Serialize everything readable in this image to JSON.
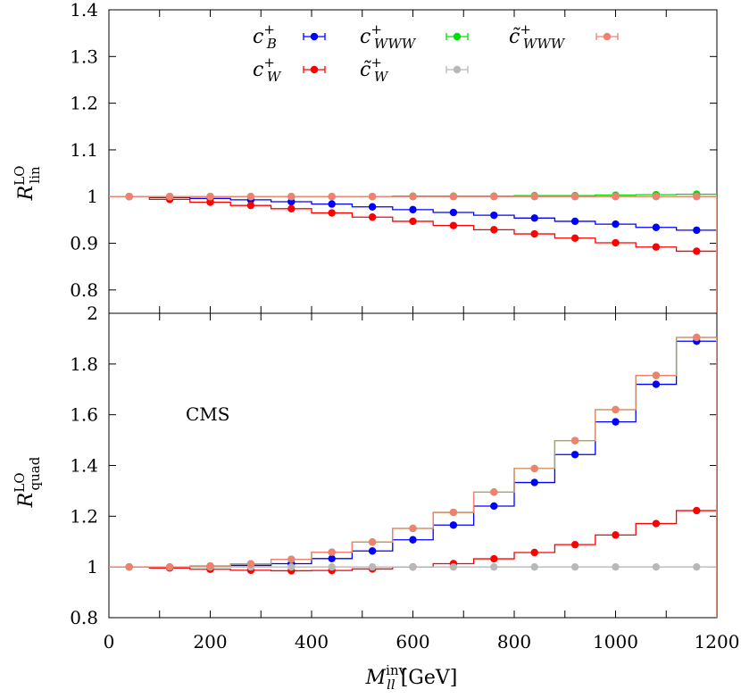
{
  "chart_data": [
    {
      "type": "line",
      "panel": "top",
      "ylabel": {
        "main": "R",
        "sup": "LO",
        "sub": "lin"
      },
      "ylim": [
        0.75,
        1.4
      ],
      "yticks": [
        "0.8",
        "0.9",
        "1",
        "1.1",
        "1.2",
        "1.3",
        "1.4"
      ],
      "ytick_values": [
        0.8,
        0.9,
        1.0,
        1.1,
        1.2,
        1.3,
        1.4
      ],
      "x_edges": [
        0,
        80,
        160,
        240,
        320,
        400,
        480,
        560,
        640,
        720,
        800,
        880,
        960,
        1040,
        1120,
        1200
      ],
      "x": [
        40,
        120,
        200,
        280,
        360,
        440,
        520,
        600,
        680,
        760,
        840,
        920,
        1000,
        1080,
        1160
      ],
      "legend_placement": "top",
      "series": [
        {
          "key": "cB",
          "color": "#0000ff",
          "values": [
            1.0,
            0.998,
            0.996,
            0.993,
            0.989,
            0.984,
            0.978,
            0.972,
            0.966,
            0.96,
            0.954,
            0.947,
            0.941,
            0.934,
            0.928
          ]
        },
        {
          "key": "cW",
          "color": "#ff0000",
          "values": [
            1.0,
            0.994,
            0.988,
            0.981,
            0.974,
            0.965,
            0.956,
            0.947,
            0.938,
            0.929,
            0.92,
            0.911,
            0.901,
            0.892,
            0.883
          ]
        },
        {
          "key": "cWWW",
          "color": "#00dd00",
          "values": [
            1.0,
            1.0,
            1.0,
            1.0,
            1.0,
            1.0,
            1.0,
            1.001,
            1.001,
            1.001,
            1.002,
            1.002,
            1.003,
            1.004,
            1.005
          ]
        },
        {
          "key": "ctW",
          "color": "#b8b8b8",
          "values": [
            1.0,
            1.0,
            1.0,
            1.0,
            1.0,
            1.0,
            1.0,
            1.0,
            1.0,
            1.0,
            1.0,
            1.0,
            1.0,
            1.0,
            1.0
          ]
        },
        {
          "key": "ctWWW",
          "color": "#f08070",
          "values": [
            1.0,
            1.0,
            1.0,
            1.0,
            1.0,
            1.0,
            1.0,
            1.0,
            1.0,
            1.0,
            1.0,
            1.0,
            1.0,
            1.0,
            1.0
          ]
        }
      ]
    },
    {
      "type": "line",
      "panel": "bottom",
      "ylabel": {
        "main": "R",
        "sup": "LO",
        "sub": "quad"
      },
      "ylim": [
        0.8,
        2.0
      ],
      "yticks": [
        "0.8",
        "1",
        "1.2",
        "1.4",
        "1.6",
        "1.8",
        "2"
      ],
      "ytick_values": [
        0.8,
        1.0,
        1.2,
        1.4,
        1.6,
        1.8,
        2.0
      ],
      "xlim": [
        0,
        1200
      ],
      "xticks": [
        "0",
        "200",
        "400",
        "600",
        "800",
        "1000",
        "1200"
      ],
      "xtick_values": [
        0,
        200,
        400,
        600,
        800,
        1000,
        1200
      ],
      "xlabel": {
        "main": "M",
        "sup": "inv",
        "sub": "ll",
        "unit": "[GeV]"
      },
      "annotation": "CMS",
      "x_edges": [
        0,
        80,
        160,
        240,
        320,
        400,
        480,
        560,
        640,
        720,
        800,
        880,
        960,
        1040,
        1120,
        1200
      ],
      "x": [
        40,
        120,
        200,
        280,
        360,
        440,
        520,
        600,
        680,
        760,
        840,
        920,
        1000,
        1080,
        1160
      ],
      "series": [
        {
          "key": "cB",
          "color": "#0000ff",
          "values": [
            1.0,
            0.999,
            1.002,
            1.006,
            1.013,
            1.033,
            1.063,
            1.107,
            1.165,
            1.24,
            1.333,
            1.443,
            1.572,
            1.72,
            1.89
          ]
        },
        {
          "key": "cW",
          "color": "#ff0000",
          "values": [
            1.0,
            0.996,
            0.991,
            0.987,
            0.985,
            0.986,
            0.992,
            1.0,
            1.013,
            1.032,
            1.057,
            1.088,
            1.126,
            1.171,
            1.222
          ]
        },
        {
          "key": "ctW",
          "color": "#b8b8b8",
          "values": [
            1.0,
            1.0,
            1.0,
            1.0,
            1.0,
            1.0,
            1.0,
            1.0,
            1.0,
            1.0,
            1.0,
            1.0,
            1.0,
            1.0,
            1.0
          ]
        },
        {
          "key": "cWWW",
          "color": "#00dd00",
          "values": [
            1.0,
            1.0,
            1.004,
            1.012,
            1.03,
            1.058,
            1.098,
            1.152,
            1.215,
            1.295,
            1.388,
            1.498,
            1.62,
            1.755,
            1.905
          ]
        },
        {
          "key": "ctWWW",
          "color": "#f08070",
          "values": [
            1.0,
            1.0,
            1.004,
            1.012,
            1.03,
            1.058,
            1.098,
            1.152,
            1.215,
            1.295,
            1.388,
            1.498,
            1.62,
            1.755,
            1.905
          ]
        }
      ]
    }
  ],
  "legend": {
    "entries": [
      {
        "key": "cB",
        "main": "c",
        "sup": "+",
        "sub": "B",
        "tilde": false,
        "color": "#0000ff"
      },
      {
        "key": "cW",
        "main": "c",
        "sup": "+",
        "sub": "W",
        "tilde": false,
        "color": "#ff0000"
      },
      {
        "key": "cWWW",
        "main": "c",
        "sup": "+",
        "sub": "WWW",
        "tilde": false,
        "color": "#00dd00"
      },
      {
        "key": "ctW",
        "main": "c",
        "sup": "+",
        "sub": "W",
        "tilde": true,
        "color": "#b8b8b8"
      },
      {
        "key": "ctWWW",
        "main": "c",
        "sup": "+",
        "sub": "WWW",
        "tilde": true,
        "color": "#f08070"
      }
    ]
  }
}
